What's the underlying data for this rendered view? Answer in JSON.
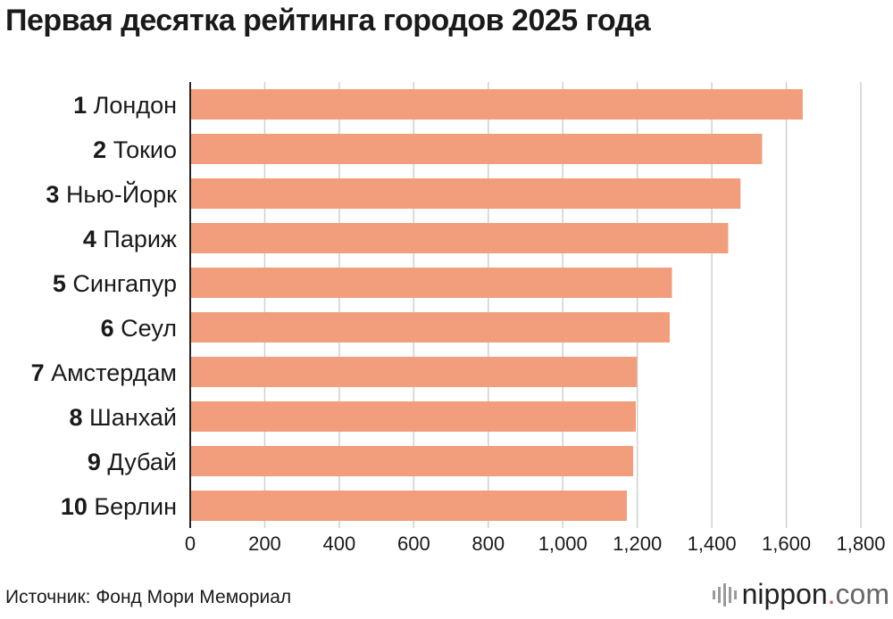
{
  "title": "Первая десятка рейтинга городов 2025 года",
  "source": "Источник: Фонд Мори Мемориал",
  "brand": {
    "name": "nippon",
    "dot": ".",
    "suffix": "com",
    "icon": "nippon-bars-icon"
  },
  "colors": {
    "bar": "#f29d7c",
    "grid": "#d0d0d0",
    "axis": "#222222"
  },
  "chart_data": {
    "type": "bar",
    "orientation": "horizontal",
    "title": "Первая десятка рейтинга городов 2025 года",
    "ranks": [
      "1",
      "2",
      "3",
      "4",
      "5",
      "6",
      "7",
      "8",
      "9",
      "10"
    ],
    "categories": [
      "Лондон",
      "Токио",
      "Нью-Йорк",
      "Париж",
      "Сингапур",
      "Сеул",
      "Амстердам",
      "Шанхай",
      "Дубай",
      "Берлин"
    ],
    "values": [
      1644,
      1535,
      1477,
      1444,
      1293,
      1287,
      1199,
      1196,
      1189,
      1172
    ],
    "xlim": [
      0,
      1800
    ],
    "ticks": [
      0,
      200,
      400,
      600,
      800,
      1000,
      1200,
      1400,
      1600,
      1800
    ],
    "tick_labels": [
      "0",
      "200",
      "400",
      "600",
      "800",
      "1,000",
      "1,200",
      "1,400",
      "1,600",
      "1,800"
    ],
    "xlabel": "",
    "ylabel": "",
    "grid": "vertical"
  }
}
